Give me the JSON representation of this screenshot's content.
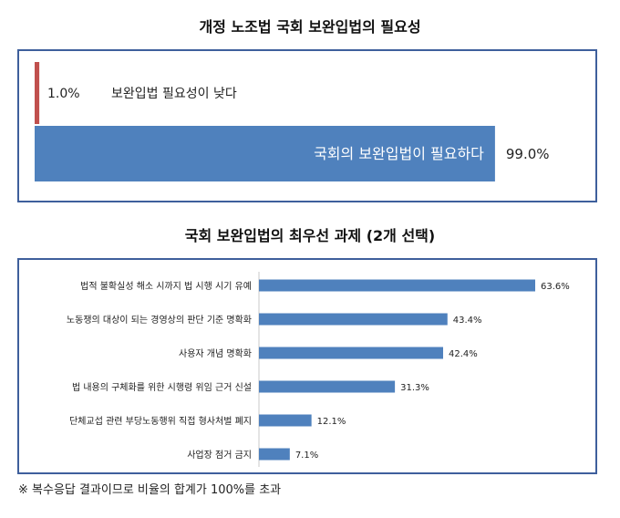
{
  "chart_data": [
    {
      "type": "bar",
      "title": "개정 노조법 국회 보완입법의 필요성",
      "orientation": "horizontal",
      "categories": [
        "보완입법 필요성이 낮다",
        "국회의 보완입법이 필요하다"
      ],
      "values": [
        1.0,
        99.0
      ],
      "value_labels": [
        "1.0%",
        "99.0%"
      ],
      "colors": [
        "#c0504d",
        "#4f81bd"
      ],
      "xlim": [
        0,
        100
      ]
    },
    {
      "type": "bar",
      "title": "국회 보완입법의 최우선 과제 (2개 선택)",
      "orientation": "horizontal",
      "categories": [
        "법적 불확실성 해소 시까지 법 시행 시기 유예",
        "노동쟁의 대상이 되는 경영상의 판단 기준 명확화",
        "사용자 개념 명확화",
        "법 내용의 구체화를 위한 시행령 위임 근거 신설",
        "단체교섭 관련 부당노동행위 직접 형사처벌 폐지",
        "사업장 점거 금지"
      ],
      "values": [
        63.6,
        43.4,
        42.4,
        31.3,
        12.1,
        7.1
      ],
      "value_labels": [
        "63.6%",
        "43.4%",
        "42.4%",
        "31.3%",
        "12.1%",
        "7.1%"
      ],
      "color": "#4f81bd",
      "xlim": [
        0,
        63.6
      ]
    }
  ],
  "footnote": "※ 복수응답 결과이므로 비율의 합계가 100%를 초과"
}
